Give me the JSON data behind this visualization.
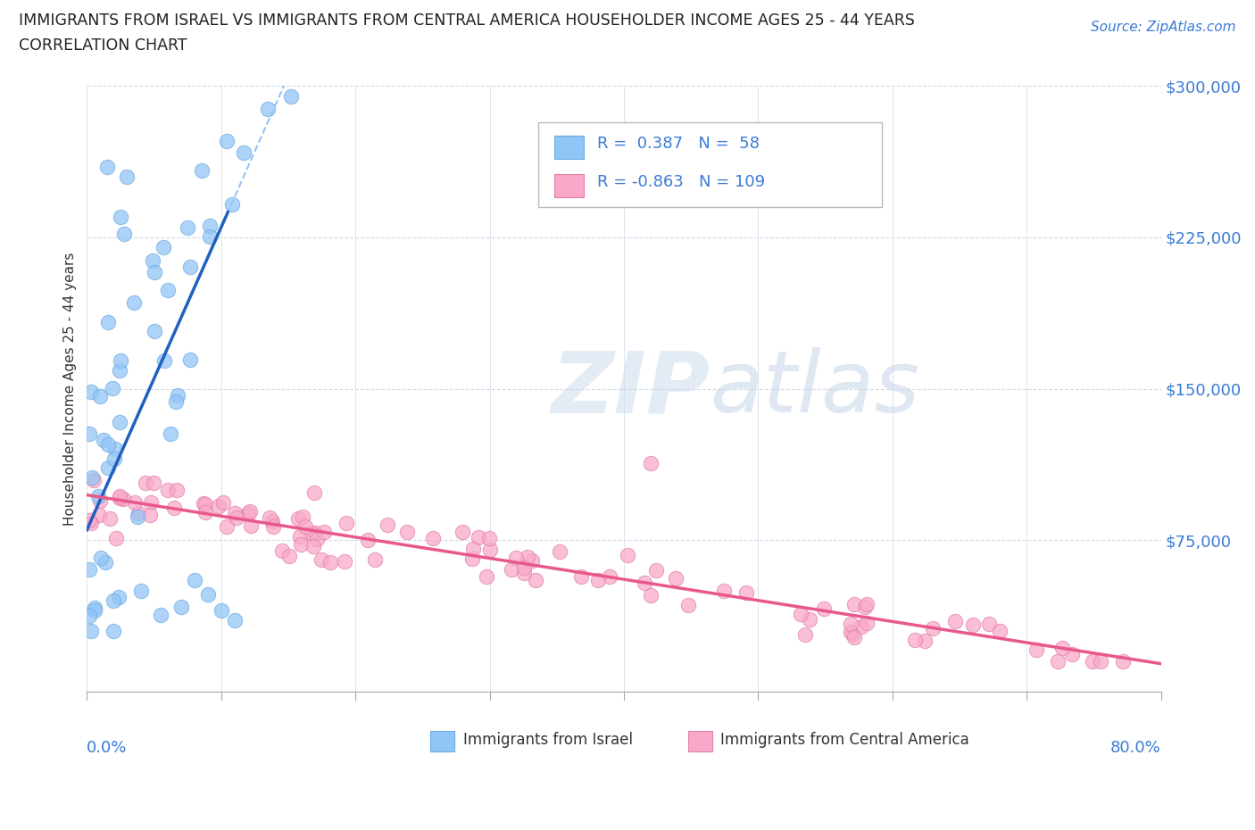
{
  "title_line1": "IMMIGRANTS FROM ISRAEL VS IMMIGRANTS FROM CENTRAL AMERICA HOUSEHOLDER INCOME AGES 25 - 44 YEARS",
  "title_line2": "CORRELATION CHART",
  "source_text": "Source: ZipAtlas.com",
  "ylabel": "Householder Income Ages 25 - 44 years",
  "xmin": 0.0,
  "xmax": 80.0,
  "ymin": 0,
  "ymax": 300000,
  "yticks": [
    0,
    75000,
    150000,
    225000,
    300000
  ],
  "israel_color": "#92C5F7",
  "israel_edge": "#6aaae0",
  "central_color": "#F9A8C9",
  "central_edge": "#e080a8",
  "trend_israel_color": "#2060C0",
  "trend_central_color": "#E8588A",
  "trend_dashed_color": "#92C5F7",
  "israel_R": 0.387,
  "israel_N": 58,
  "central_R": -0.863,
  "central_N": 109,
  "legend_color": "#3A7BD5",
  "watermark_color": "#C8D8F0",
  "grid_color": "#D0D8E8",
  "source_color": "#3A7BD5",
  "tick_color": "#3A7BD5",
  "title_color": "#222222"
}
